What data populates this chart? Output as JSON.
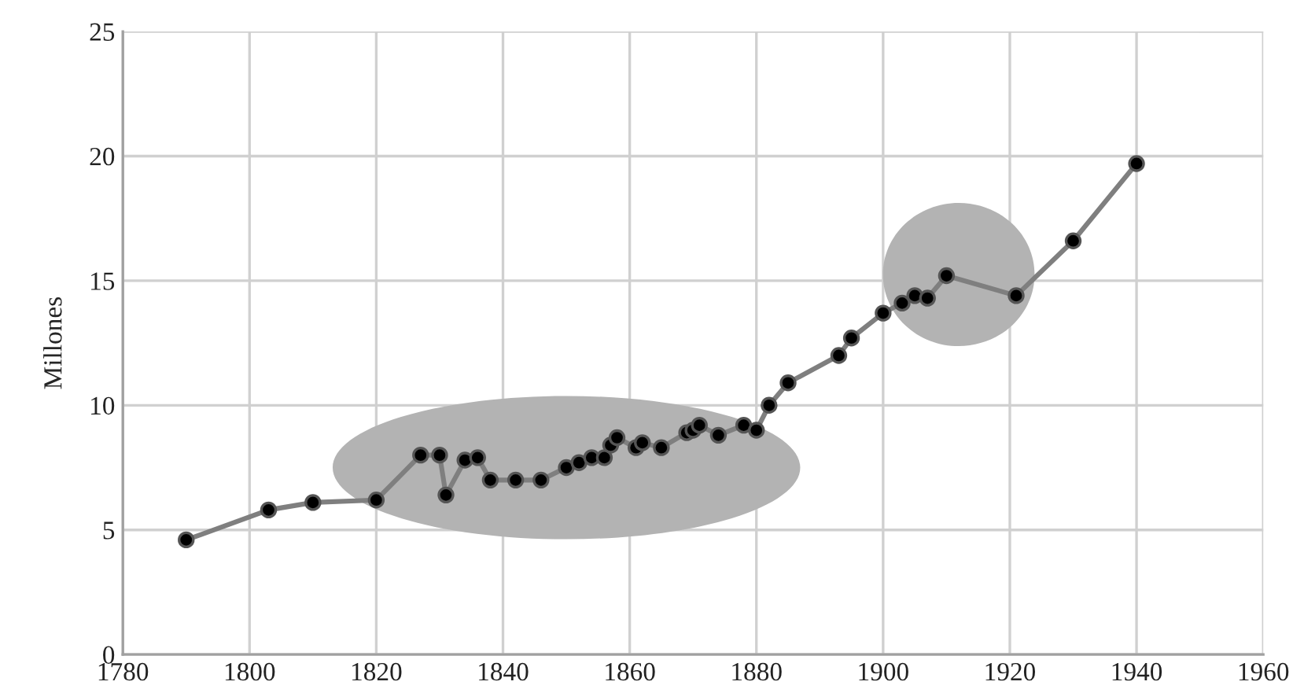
{
  "chart_data": {
    "type": "line",
    "ylabel": "Millones",
    "x": [
      1790,
      1803,
      1810,
      1820,
      1827,
      1830,
      1831,
      1834,
      1836,
      1838,
      1842,
      1846,
      1850,
      1852,
      1854,
      1856,
      1857,
      1858,
      1861,
      1862,
      1865,
      1869,
      1870,
      1871,
      1874,
      1878,
      1880,
      1882,
      1885,
      1893,
      1895,
      1900,
      1903,
      1905,
      1907,
      1910,
      1921,
      1930,
      1940
    ],
    "series": [
      {
        "color": "#7f7f7f",
        "values": [
          4.6,
          5.8,
          6.1,
          6.2,
          8.0,
          8.0,
          6.4,
          7.8,
          7.9,
          7.0,
          7.0,
          7.0,
          7.5,
          7.7,
          7.9,
          7.9,
          8.4,
          8.7,
          8.3,
          8.5,
          8.3,
          8.9,
          9.0,
          9.2,
          8.8,
          9.2,
          9.0,
          10.0,
          10.9,
          12.0,
          12.7,
          13.7,
          14.1,
          14.4,
          14.3,
          15.2,
          14.4,
          16.6,
          19.7
        ]
      }
    ],
    "xlim": [
      1780,
      1960
    ],
    "xticks": [
      1780,
      1800,
      1820,
      1840,
      1860,
      1880,
      1900,
      1920,
      1940,
      1960
    ],
    "ylim": [
      0,
      25
    ],
    "yticks": [
      0,
      5,
      10,
      15,
      20,
      25
    ],
    "grid": true,
    "marker": "circle",
    "line_style": "solid"
  }
}
